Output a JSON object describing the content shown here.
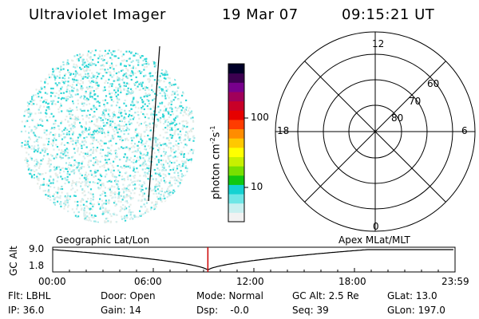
{
  "header": {
    "title": "Ultraviolet Imager",
    "date": "19 Mar 07",
    "time": "09:15:21 UT"
  },
  "colorbar": {
    "label": "photon cm^-2 s^-1",
    "label_main": "photon cm",
    "label_exp1": "-2",
    "label_s": "s",
    "label_exp2": "-1",
    "ticks": [
      "100",
      "10"
    ],
    "tick_values": [
      100,
      10
    ],
    "colors": [
      "#f2f2f2",
      "#c8f0f0",
      "#6ee6e6",
      "#14d2d2",
      "#10c810",
      "#78e000",
      "#c8f000",
      "#ffff00",
      "#ffc800",
      "#ff8c00",
      "#ff3c00",
      "#e60000",
      "#c80028",
      "#a0005a",
      "#78008c",
      "#3c0050",
      "#000028"
    ]
  },
  "polar": {
    "mlt_labels": [
      "12",
      "18",
      "6",
      "0"
    ],
    "lat_labels": [
      "60",
      "70",
      "80"
    ]
  },
  "timeline": {
    "ylabel": "GC Alt",
    "y_ticks": [
      "9.0",
      "1.8"
    ],
    "left_title": "Geographic Lat/Lon",
    "right_title": "Apex MLat/MLT",
    "x_ticks": [
      "00:00",
      "06:00",
      "12:00",
      "18:00",
      "23:59"
    ],
    "current_time": "09:15:21"
  },
  "footer": {
    "row1": [
      "Flt: LBHL",
      "Door: Open",
      "Mode: Normal",
      "GC Alt: 2.5 Re",
      "GLat: 13.0"
    ],
    "row2": [
      "IP: 36.0",
      "Gain: 14",
      "Dsp:    -0.0",
      "Seq: 39",
      "GLon: 197.0"
    ]
  },
  "colors": {
    "cyan": "#2fd6d6",
    "red_marker": "#cc0000"
  }
}
